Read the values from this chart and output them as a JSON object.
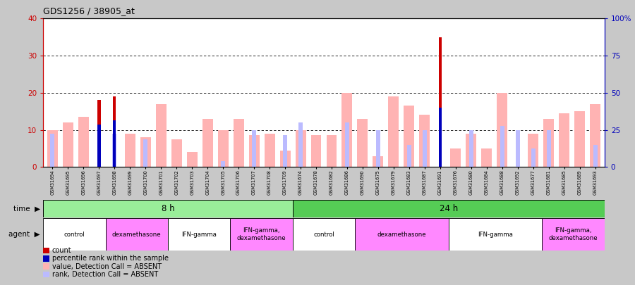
{
  "title": "GDS1256 / 38905_at",
  "samples": [
    "GSM31694",
    "GSM31695",
    "GSM31696",
    "GSM31697",
    "GSM31698",
    "GSM31699",
    "GSM31700",
    "GSM31701",
    "GSM31702",
    "GSM31703",
    "GSM31704",
    "GSM31705",
    "GSM31706",
    "GSM31707",
    "GSM31708",
    "GSM31709",
    "GSM31674",
    "GSM31678",
    "GSM31682",
    "GSM31686",
    "GSM31690",
    "GSM31675",
    "GSM31679",
    "GSM31683",
    "GSM31687",
    "GSM31691",
    "GSM31676",
    "GSM31680",
    "GSM31684",
    "GSM31688",
    "GSM31692",
    "GSM31677",
    "GSM31681",
    "GSM31685",
    "GSM31689",
    "GSM31693"
  ],
  "count": [
    0,
    0,
    0,
    18,
    19,
    0,
    0,
    0,
    0,
    0,
    0,
    0,
    0,
    0,
    0,
    0,
    0,
    0,
    0,
    0,
    0,
    0,
    0,
    0,
    0,
    35,
    0,
    0,
    0,
    0,
    0,
    0,
    0,
    0,
    0,
    0
  ],
  "percentile_rank": [
    0,
    0,
    0,
    11.5,
    12.5,
    0,
    0,
    0,
    0,
    0,
    0,
    0,
    0,
    0,
    0,
    0,
    0,
    0,
    0,
    0,
    0,
    0,
    0,
    0,
    0,
    16,
    0,
    0,
    0,
    0,
    0,
    0,
    0,
    0,
    0,
    0
  ],
  "value_absent": [
    10,
    12,
    13.5,
    0,
    0,
    9,
    8,
    17,
    7.5,
    4,
    13,
    10,
    13,
    8.5,
    9,
    4.5,
    10,
    8.5,
    8.5,
    20,
    13,
    3,
    19,
    16.5,
    14,
    0,
    5,
    9,
    5,
    20,
    0,
    9,
    13,
    14.5,
    15,
    17
  ],
  "rank_absent": [
    9,
    0,
    0,
    0,
    9,
    0,
    7.5,
    0,
    0,
    0,
    0,
    1.5,
    0,
    10,
    0,
    8.5,
    12,
    0,
    0,
    12,
    0,
    10,
    0,
    6,
    10,
    0,
    0,
    10,
    0,
    11,
    10,
    5,
    10,
    0,
    0,
    6
  ],
  "left_ylim": [
    0,
    40
  ],
  "right_ylim": [
    0,
    100
  ],
  "left_yticks": [
    0,
    10,
    20,
    30,
    40
  ],
  "right_yticks": [
    0,
    25,
    50,
    75,
    100
  ],
  "right_yticklabels": [
    "0",
    "25",
    "50",
    "75",
    "100%"
  ],
  "count_color": "#CC0000",
  "percentile_color": "#0000BB",
  "value_absent_color": "#FFB3B3",
  "rank_absent_color": "#BBBBFF",
  "bg_color": "#FFFFFF",
  "fig_bg_color": "#C8C8C8",
  "left_axis_color": "#CC0000",
  "right_axis_color": "#0000BB",
  "time_8h_color": "#99EE99",
  "time_24h_color": "#55CC55",
  "agent_groups": [
    {
      "label": "control",
      "start": 0,
      "end": 4,
      "color": "#FFFFFF"
    },
    {
      "label": "dexamethasone",
      "start": 4,
      "end": 8,
      "color": "#FF88FF"
    },
    {
      "label": "IFN-gamma",
      "start": 8,
      "end": 12,
      "color": "#FFFFFF"
    },
    {
      "label": "IFN-gamma,\ndexamethasone",
      "start": 12,
      "end": 16,
      "color": "#FF88FF"
    },
    {
      "label": "control",
      "start": 16,
      "end": 20,
      "color": "#FFFFFF"
    },
    {
      "label": "dexamethasone",
      "start": 20,
      "end": 26,
      "color": "#FF88FF"
    },
    {
      "label": "IFN-gamma",
      "start": 26,
      "end": 32,
      "color": "#FFFFFF"
    },
    {
      "label": "IFN-gamma,\ndexamethasone",
      "start": 32,
      "end": 36,
      "color": "#FF88FF"
    }
  ],
  "legend_items": [
    {
      "color": "#CC0000",
      "label": "count"
    },
    {
      "color": "#0000BB",
      "label": "percentile rank within the sample"
    },
    {
      "color": "#FFB3B3",
      "label": "value, Detection Call = ABSENT"
    },
    {
      "color": "#BBBBFF",
      "label": "rank, Detection Call = ABSENT"
    }
  ]
}
